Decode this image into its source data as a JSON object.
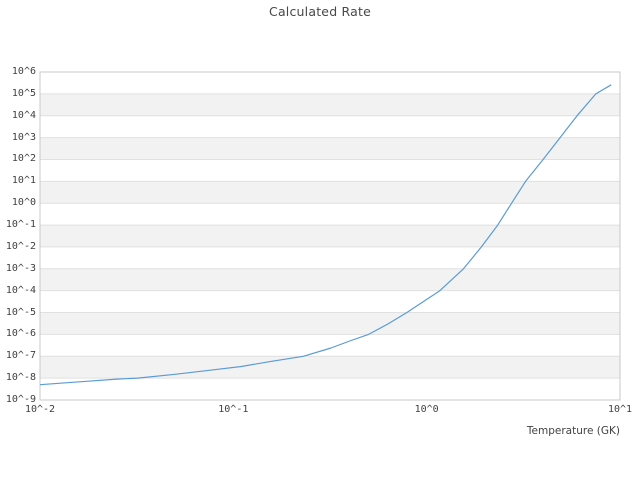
{
  "figure": {
    "title": "Calculated Rate",
    "x_axis_label": "Temperature (GK)"
  },
  "colors": {
    "line": "#5b9bd5",
    "band_alt": "#f2f2f2",
    "band_main": "#ffffff",
    "grid": "#e0e0e0",
    "border": "#c8c8c8",
    "title_text": "#484848",
    "tick_text": "#404040"
  },
  "chart_data": {
    "type": "line",
    "title": "Calculated Rate",
    "xlabel": "Temperature (GK)",
    "ylabel": "",
    "x_scale": "log",
    "y_scale": "log",
    "xlim": [
      0.01,
      10
    ],
    "ylim": [
      1e-09,
      1000000.0
    ],
    "grid": "horizontal",
    "legend_position": "none",
    "background_bands": "alternating horizontal decade stripes, white and light gray",
    "x_ticks": [
      {
        "value": 0.01,
        "label": "10^-2"
      },
      {
        "value": 0.1,
        "label": "10^-1"
      },
      {
        "value": 1,
        "label": "10^0"
      },
      {
        "value": 10,
        "label": "10^1"
      }
    ],
    "y_ticks": [
      {
        "value": 1000000.0,
        "label": "10^6"
      },
      {
        "value": 100000.0,
        "label": "10^5"
      },
      {
        "value": 10000.0,
        "label": "10^4"
      },
      {
        "value": 1000.0,
        "label": "10^3"
      },
      {
        "value": 100.0,
        "label": "10^2"
      },
      {
        "value": 10.0,
        "label": "10^1"
      },
      {
        "value": 1.0,
        "label": "10^0"
      },
      {
        "value": 0.1,
        "label": "10^-1"
      },
      {
        "value": 0.01,
        "label": "10^-2"
      },
      {
        "value": 0.001,
        "label": "10^-3"
      },
      {
        "value": 0.0001,
        "label": "10^-4"
      },
      {
        "value": 1e-05,
        "label": "10^-5"
      },
      {
        "value": 1e-06,
        "label": "10^-6"
      },
      {
        "value": 1e-07,
        "label": "10^-7"
      },
      {
        "value": 1e-08,
        "label": "10^-8"
      },
      {
        "value": 1e-09,
        "label": "10^-9"
      }
    ],
    "series": [
      {
        "name": "calculated_rate",
        "color": "#5b9bd5",
        "x": [
          0.01,
          0.016,
          0.025,
          0.032,
          0.05,
          0.079,
          0.11,
          0.158,
          0.23,
          0.32,
          0.4,
          0.5,
          0.63,
          0.79,
          1.0,
          1.17,
          1.55,
          1.92,
          2.33,
          2.75,
          3.25,
          4.0,
          4.9,
          6.0,
          7.5,
          9.0
        ],
        "y": [
          5e-09,
          6.8e-09,
          9e-09,
          1e-08,
          1.5e-08,
          2.4e-08,
          3.4e-08,
          5.9e-08,
          1e-07,
          2.4e-07,
          5e-07,
          1e-06,
          3e-06,
          1e-05,
          4e-05,
          0.0001,
          0.001,
          0.01,
          0.1,
          1.0,
          10,
          100,
          1000,
          10000,
          100000,
          260000
        ]
      }
    ]
  }
}
